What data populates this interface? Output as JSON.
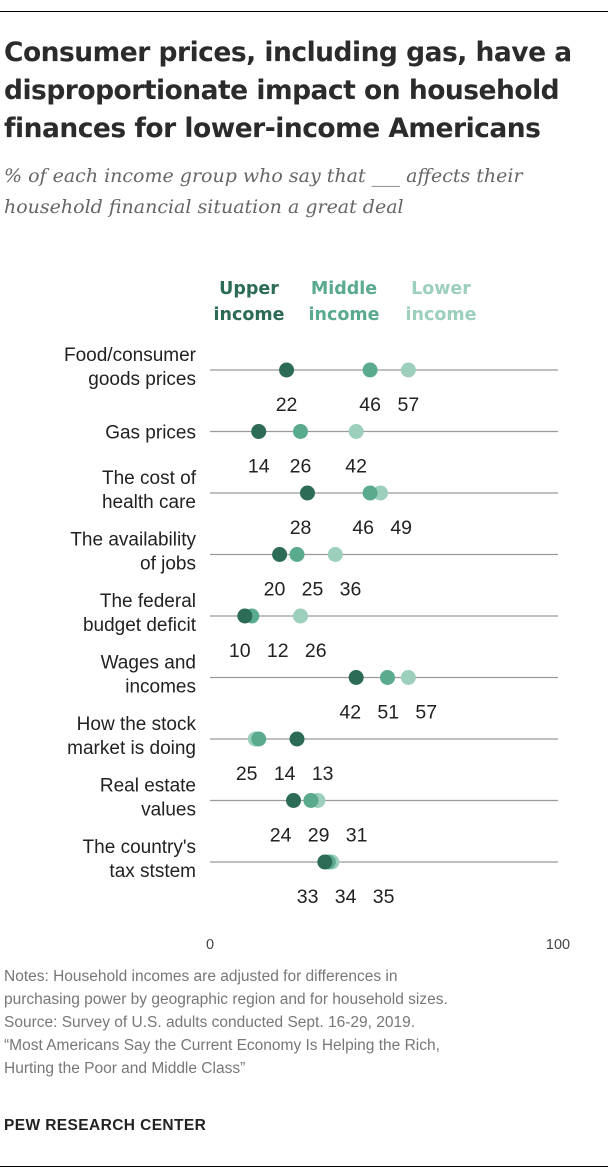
{
  "title": "Consumer prices, including gas, have a disproportionate impact on household finances for lower-income Americans",
  "subtitle": "% of each income group who say that ___ affects their household financial situation a great deal",
  "chart_data": {
    "type": "dot",
    "xlim": [
      0,
      100
    ],
    "x_ticks": [
      "0",
      "100"
    ],
    "grid": false,
    "categories": [
      [
        "Food/consumer",
        "goods prices"
      ],
      [
        "Gas prices"
      ],
      [
        "The cost of",
        "health care"
      ],
      [
        "The availability",
        "of jobs"
      ],
      [
        "The federal",
        "budget deficit"
      ],
      [
        "Wages and",
        "incomes"
      ],
      [
        "How the stock",
        "market is doing"
      ],
      [
        "Real estate",
        "values"
      ],
      [
        "The country's",
        "tax ststem"
      ]
    ],
    "series": [
      {
        "name": [
          "Upper",
          "income"
        ],
        "color": "#2c6b56",
        "values": [
          22,
          14,
          28,
          20,
          10,
          42,
          25,
          24,
          33
        ]
      },
      {
        "name": [
          "Middle",
          "income"
        ],
        "color": "#5aaa8e",
        "values": [
          46,
          26,
          46,
          25,
          12,
          51,
          14,
          29,
          34
        ]
      },
      {
        "name": [
          "Lower",
          "income"
        ],
        "color": "#9ccfbc",
        "values": [
          57,
          42,
          49,
          36,
          26,
          57,
          13,
          31,
          35
        ]
      }
    ],
    "value_labels": [
      [
        "22",
        "46",
        "57"
      ],
      [
        "14",
        "26",
        "42"
      ],
      [
        "28",
        "46",
        "49"
      ],
      [
        "20",
        "25",
        "36"
      ],
      [
        "10",
        "12",
        "26"
      ],
      [
        "42",
        "51",
        "57"
      ],
      [
        "13",
        "14",
        "25"
      ],
      [
        "24",
        "29",
        "31"
      ],
      [
        "33",
        "34",
        "35"
      ]
    ],
    "legend_position": "top"
  },
  "notes": [
    "Notes: Household incomes are adjusted for differences in",
    "purchasing power by geographic region and for household sizes.",
    "Source: Survey of U.S. adults conducted Sept. 16-29, 2019.",
    "“Most Americans Say the Current Economy Is Helping the Rich,",
    "Hurting the Poor and Middle Class”"
  ],
  "brand": "PEW RESEARCH CENTER"
}
